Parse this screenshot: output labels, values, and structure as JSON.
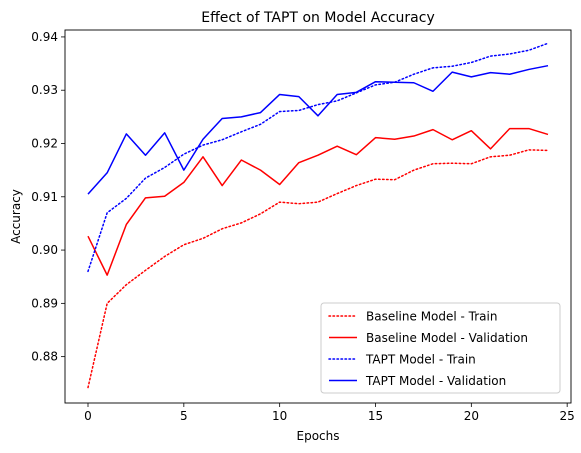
{
  "chart_data": {
    "type": "line",
    "title": "Effect of TAPT on Model Accuracy",
    "xlabel": "Epochs",
    "ylabel": "Accuracy",
    "xlim": [
      -1.2,
      25.2
    ],
    "ylim": [
      0.8713,
      0.9413
    ],
    "xticks": [
      0,
      5,
      10,
      15,
      20,
      25
    ],
    "yticks": [
      0.88,
      0.89,
      0.9,
      0.91,
      0.92,
      0.93,
      0.94
    ],
    "ytick_labels": [
      "0.88",
      "0.89",
      "0.90",
      "0.91",
      "0.92",
      "0.93",
      "0.94"
    ],
    "grid": false,
    "legend_position": "lower-right",
    "x": [
      0,
      1,
      2,
      3,
      4,
      5,
      6,
      7,
      8,
      9,
      10,
      11,
      12,
      13,
      14,
      15,
      16,
      17,
      18,
      19,
      20,
      21,
      22,
      23,
      24
    ],
    "series": [
      {
        "name": "Baseline Model - Train",
        "color": "#ff0000",
        "style": "dotted",
        "values": [
          0.8742,
          0.89,
          0.8935,
          0.8962,
          0.8988,
          0.901,
          0.9022,
          0.904,
          0.9051,
          0.9068,
          0.909,
          0.9087,
          0.909,
          0.9106,
          0.9121,
          0.9133,
          0.9132,
          0.915,
          0.9162,
          0.9163,
          0.9162,
          0.9175,
          0.9178,
          0.9188,
          0.9187
        ]
      },
      {
        "name": "Baseline Model - Validation",
        "color": "#ff0000",
        "style": "solid",
        "values": [
          0.9026,
          0.8953,
          0.9048,
          0.9098,
          0.9101,
          0.9127,
          0.9175,
          0.9121,
          0.9169,
          0.915,
          0.9123,
          0.9164,
          0.9178,
          0.9195,
          0.9179,
          0.9211,
          0.9208,
          0.9214,
          0.9226,
          0.9207,
          0.9224,
          0.919,
          0.9228,
          0.9228,
          0.9217
        ]
      },
      {
        "name": "TAPT Model - Train",
        "color": "#0000ff",
        "style": "dotted",
        "values": [
          0.896,
          0.907,
          0.9097,
          0.9135,
          0.9155,
          0.918,
          0.9197,
          0.9207,
          0.9222,
          0.9236,
          0.926,
          0.9262,
          0.9273,
          0.928,
          0.9295,
          0.931,
          0.9315,
          0.933,
          0.9342,
          0.9345,
          0.9352,
          0.9364,
          0.9368,
          0.9375,
          0.9388
        ]
      },
      {
        "name": "TAPT Model - Validation",
        "color": "#0000ff",
        "style": "solid",
        "values": [
          0.9105,
          0.9145,
          0.9218,
          0.9178,
          0.922,
          0.915,
          0.9208,
          0.9247,
          0.925,
          0.9258,
          0.9292,
          0.9288,
          0.9252,
          0.9292,
          0.9296,
          0.9316,
          0.9315,
          0.9314,
          0.9298,
          0.9334,
          0.9325,
          0.9333,
          0.933,
          0.9339,
          0.9346
        ]
      }
    ]
  }
}
